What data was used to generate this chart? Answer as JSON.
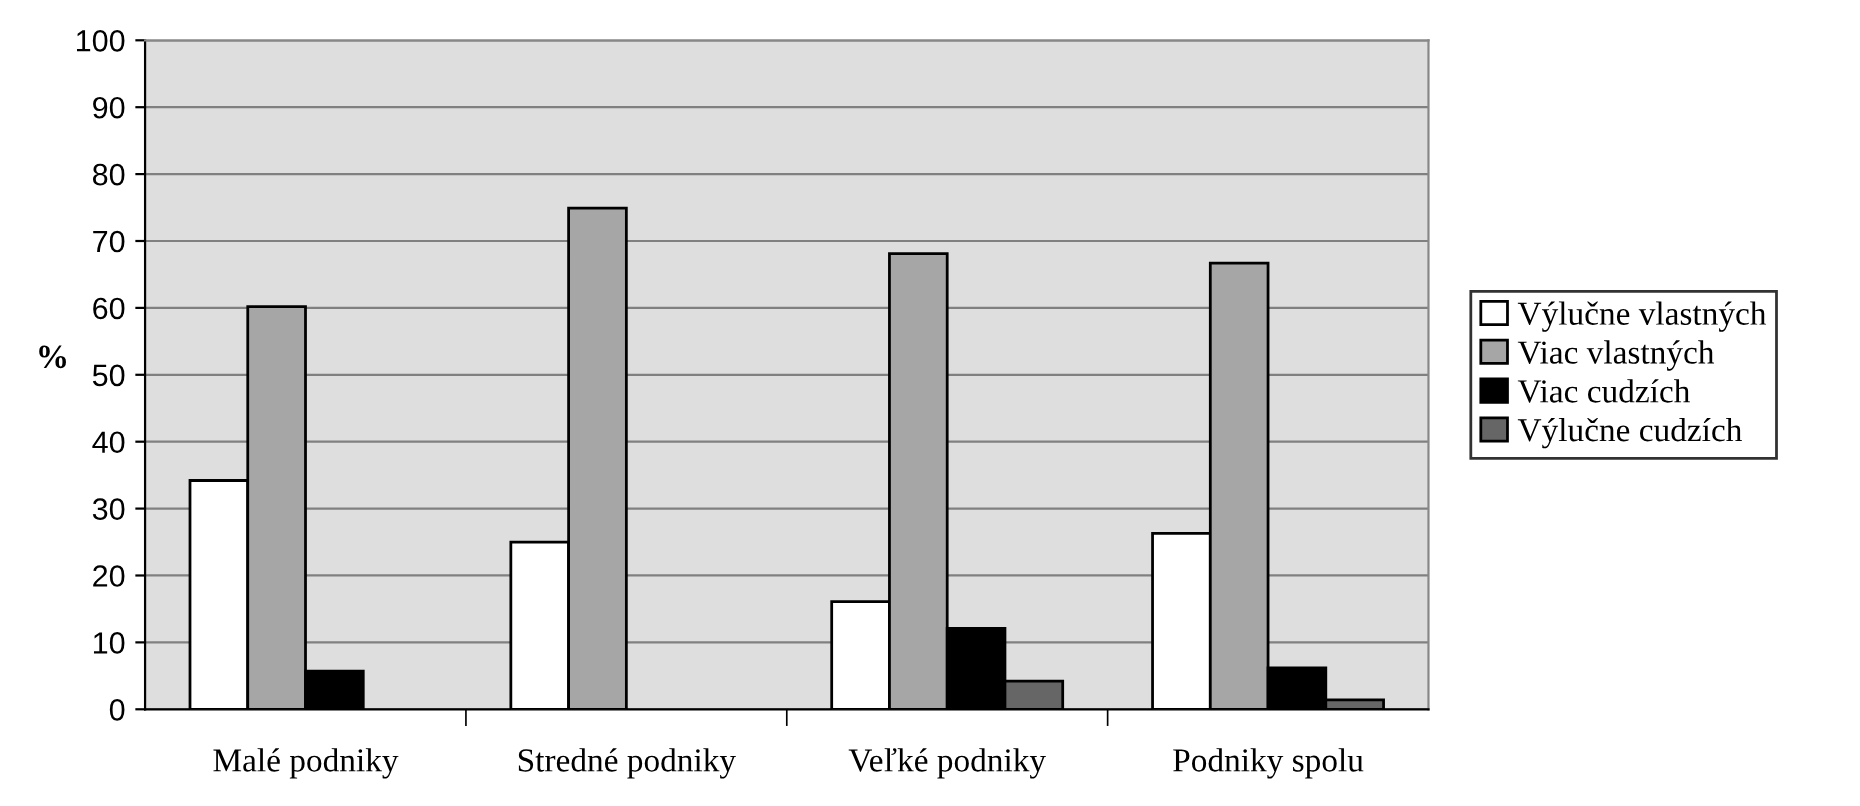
{
  "chart_data": {
    "type": "bar",
    "ylabel": "%",
    "categories": [
      "Malé podniky",
      "Stredné podniky",
      "Veľké podniky",
      "Podniky spolu"
    ],
    "series": [
      {
        "name": "Výlučne vlastných",
        "color": "#ffffff",
        "values": [
          34.2,
          25,
          16.1,
          26.3
        ]
      },
      {
        "name": "Viac vlastných",
        "color": "#a6a6a6",
        "values": [
          60.2,
          74.9,
          68.1,
          66.7
        ]
      },
      {
        "name": "Viac cudzích",
        "color": "#000000",
        "values": [
          5.7,
          null,
          12.1,
          6.2
        ]
      },
      {
        "name": "Výlučne cudzích",
        "color": "#666666",
        "values": [
          null,
          null,
          4.2,
          1.4
        ]
      }
    ],
    "ylim": [
      0,
      100
    ],
    "yticks": [
      0,
      10,
      20,
      30,
      40,
      50,
      60,
      70,
      80,
      90,
      100
    ],
    "grid": "y",
    "legend": "right"
  }
}
